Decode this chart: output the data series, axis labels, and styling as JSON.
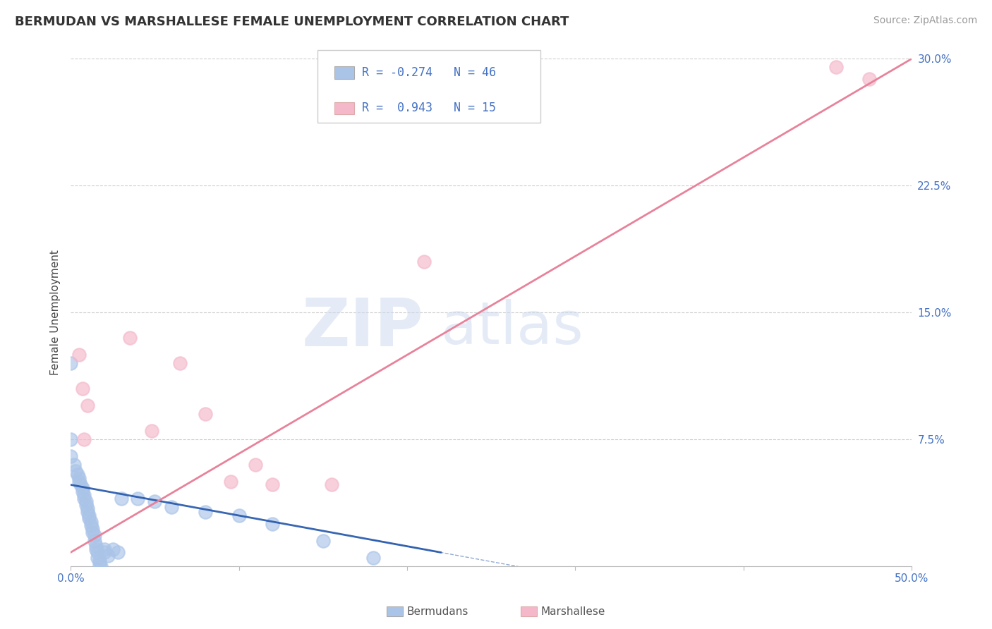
{
  "title": "BERMUDAN VS MARSHALLESE FEMALE UNEMPLOYMENT CORRELATION CHART",
  "source_text": "Source: ZipAtlas.com",
  "ylabel": "Female Unemployment",
  "xlim": [
    0.0,
    0.5
  ],
  "ylim": [
    0.0,
    0.3
  ],
  "xtick_vals": [
    0.0,
    0.1,
    0.2,
    0.3,
    0.4,
    0.5
  ],
  "xtick_labels": [
    "0.0%",
    "",
    "",
    "",
    "",
    "50.0%"
  ],
  "ytick_vals": [
    0.0,
    0.075,
    0.15,
    0.225,
    0.3
  ],
  "ytick_labels": [
    "",
    "7.5%",
    "15.0%",
    "22.5%",
    "30.0%"
  ],
  "grid_color": "#cccccc",
  "background_color": "#ffffff",
  "watermark_zip": "ZIP",
  "watermark_atlas": "atlas",
  "bermuda_color": "#aac4e8",
  "marshall_color": "#f4b8ca",
  "bermuda_line_color": "#2255aa",
  "marshall_line_color": "#e8829a",
  "title_fontsize": 13,
  "axis_label_fontsize": 11,
  "tick_fontsize": 11,
  "legend_fontsize": 13,
  "source_fontsize": 10,
  "bermuda_scatter": [
    [
      0.0,
      0.12
    ],
    [
      0.0,
      0.075
    ],
    [
      0.0,
      0.065
    ],
    [
      0.002,
      0.06
    ],
    [
      0.003,
      0.056
    ],
    [
      0.004,
      0.054
    ],
    [
      0.005,
      0.052
    ],
    [
      0.005,
      0.05
    ],
    [
      0.006,
      0.048
    ],
    [
      0.007,
      0.046
    ],
    [
      0.007,
      0.044
    ],
    [
      0.008,
      0.042
    ],
    [
      0.008,
      0.04
    ],
    [
      0.009,
      0.038
    ],
    [
      0.009,
      0.036
    ],
    [
      0.01,
      0.034
    ],
    [
      0.01,
      0.032
    ],
    [
      0.011,
      0.03
    ],
    [
      0.011,
      0.028
    ],
    [
      0.012,
      0.026
    ],
    [
      0.012,
      0.024
    ],
    [
      0.013,
      0.022
    ],
    [
      0.013,
      0.02
    ],
    [
      0.014,
      0.018
    ],
    [
      0.014,
      0.015
    ],
    [
      0.015,
      0.012
    ],
    [
      0.015,
      0.01
    ],
    [
      0.016,
      0.008
    ],
    [
      0.016,
      0.005
    ],
    [
      0.017,
      0.003
    ],
    [
      0.017,
      0.001
    ],
    [
      0.018,
      0.0
    ],
    [
      0.02,
      0.01
    ],
    [
      0.02,
      0.008
    ],
    [
      0.022,
      0.006
    ],
    [
      0.025,
      0.01
    ],
    [
      0.028,
      0.008
    ],
    [
      0.03,
      0.04
    ],
    [
      0.04,
      0.04
    ],
    [
      0.05,
      0.038
    ],
    [
      0.06,
      0.035
    ],
    [
      0.08,
      0.032
    ],
    [
      0.1,
      0.03
    ],
    [
      0.12,
      0.025
    ],
    [
      0.15,
      0.015
    ],
    [
      0.18,
      0.005
    ]
  ],
  "marshall_scatter": [
    [
      0.005,
      0.125
    ],
    [
      0.007,
      0.105
    ],
    [
      0.008,
      0.075
    ],
    [
      0.01,
      0.095
    ],
    [
      0.035,
      0.135
    ],
    [
      0.048,
      0.08
    ],
    [
      0.065,
      0.12
    ],
    [
      0.08,
      0.09
    ],
    [
      0.095,
      0.05
    ],
    [
      0.11,
      0.06
    ],
    [
      0.12,
      0.048
    ],
    [
      0.155,
      0.048
    ],
    [
      0.21,
      0.18
    ],
    [
      0.455,
      0.295
    ],
    [
      0.475,
      0.288
    ]
  ],
  "bermuda_line_x": [
    0.0,
    0.22
  ],
  "bermuda_line_y": [
    0.048,
    0.008
  ],
  "marshall_line_x": [
    0.0,
    0.5
  ],
  "marshall_line_y": [
    0.008,
    0.3
  ]
}
